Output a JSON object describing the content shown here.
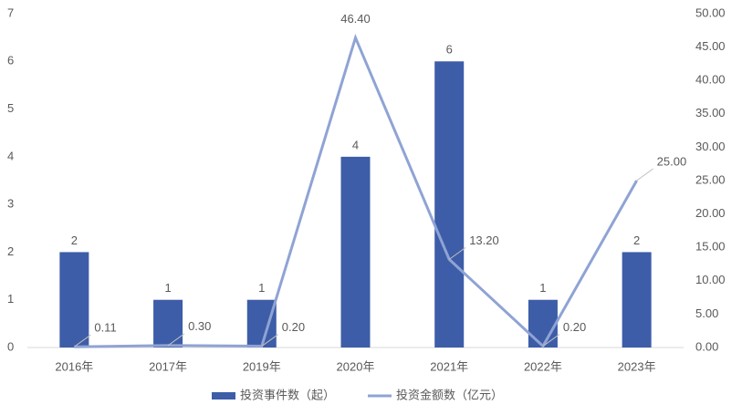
{
  "chart_data": {
    "type": "bar",
    "categories": [
      "2016年",
      "2017年",
      "2019年",
      "2020年",
      "2021年",
      "2022年",
      "2023年"
    ],
    "series": [
      {
        "name": "投资事件数（起）",
        "type": "bar",
        "color": "#3d5da8",
        "values": [
          2,
          1,
          1,
          4,
          6,
          1,
          2
        ]
      },
      {
        "name": "投资金额数（亿元）",
        "type": "line",
        "axis": "y2",
        "color": "#8fa3d4",
        "values": [
          0.11,
          0.3,
          0.2,
          46.4,
          13.2,
          0.2,
          25.0
        ],
        "value_labels": [
          "0.11",
          "0.30",
          "0.20",
          "46.40",
          "13.20",
          "0.20",
          "25.00"
        ]
      }
    ],
    "ylim": [
      0,
      7
    ],
    "yticks": [
      0,
      1,
      2,
      3,
      4,
      5,
      6,
      7
    ],
    "y2lim": [
      0,
      50
    ],
    "y2ticks": [
      {
        "value": 0,
        "label": "0.00"
      },
      {
        "value": 5,
        "label": "5.00"
      },
      {
        "value": 10,
        "label": "10.00"
      },
      {
        "value": 15,
        "label": "15.00"
      },
      {
        "value": 20,
        "label": "20.00"
      },
      {
        "value": 25,
        "label": "25.00"
      },
      {
        "value": 30,
        "label": "30.00"
      },
      {
        "value": 35,
        "label": "35.00"
      },
      {
        "value": 40,
        "label": "40.00"
      },
      {
        "value": 45,
        "label": "45.00"
      },
      {
        "value": 50,
        "label": "50.00"
      }
    ],
    "grid": false,
    "legend": "bottom"
  }
}
